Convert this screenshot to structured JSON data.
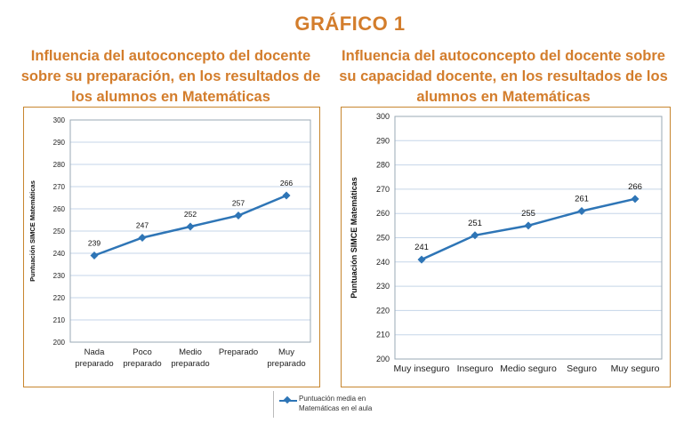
{
  "figure_title": "GRÁFICO 1",
  "legend": {
    "label": "Puntuación media en Matemáticas en el aula",
    "color": "#2e75b6"
  },
  "colors": {
    "title": "#d37d2c",
    "border": "#c7862f",
    "series": "#2e75b6",
    "grid": "#c5d5e8"
  },
  "chart_data": [
    {
      "type": "line",
      "title": "Influencia del autoconcepto del docente sobre su preparación, en los resultados de los alumnos en Matemáticas",
      "xlabel": "",
      "ylabel": "Puntuación SIMCE  Matemáticas",
      "categories": [
        "Nada preparado",
        "Poco preparado",
        "Medio preparado",
        "Preparado",
        "Muy preparado"
      ],
      "series": [
        {
          "name": "Puntuación media en Matemáticas en el aula",
          "values": [
            239,
            247,
            252,
            257,
            266
          ]
        }
      ],
      "ylim": [
        200,
        300
      ],
      "yticks": [
        200,
        210,
        220,
        230,
        240,
        250,
        260,
        270,
        280,
        290,
        300
      ],
      "grid": true
    },
    {
      "type": "line",
      "title": "Influencia del autoconcepto del docente sobre su capacidad docente, en los resultados de los alumnos en Matemáticas",
      "xlabel": "",
      "ylabel": "Puntuación SIMCE   Matemáticas",
      "categories": [
        "Muy inseguro",
        "Inseguro",
        "Medio seguro",
        "Seguro",
        "Muy seguro"
      ],
      "series": [
        {
          "name": "Puntuación media en Matemáticas en el aula",
          "values": [
            241,
            251,
            255,
            261,
            266
          ]
        }
      ],
      "ylim": [
        200,
        300
      ],
      "yticks": [
        200,
        210,
        220,
        230,
        240,
        250,
        260,
        270,
        280,
        290,
        300
      ],
      "grid": true
    }
  ]
}
